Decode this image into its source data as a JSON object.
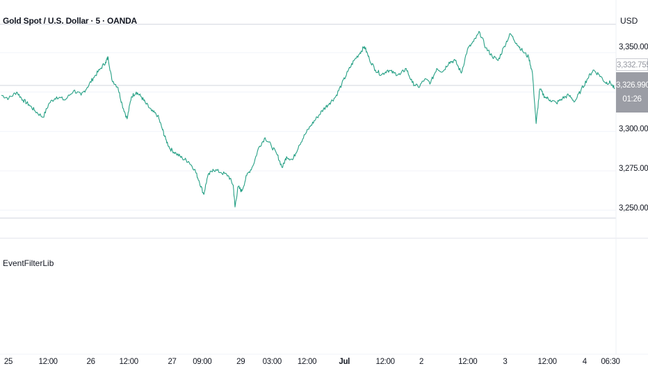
{
  "header": {
    "symbol_title": "Gold Spot / U.S. Dollar · 5 · OANDA",
    "currency": "USD"
  },
  "indicator_pane": {
    "label": "EventFilterLib"
  },
  "colors": {
    "line": "#26a085",
    "grid": "#f0f3fa",
    "separator": "#e0e3eb",
    "last_price_badge": "#9b9da5"
  },
  "price_axis": {
    "ticks": [
      "3,350.000",
      "3,300.000",
      "3,275.000",
      "3,250.000"
    ],
    "previous_close_label": "3,332.755",
    "last_price_label": "3,326.990",
    "countdown_label": "01:26"
  },
  "time_axis": {
    "ticks": [
      {
        "label": "25",
        "bold": false
      },
      {
        "label": "12:00",
        "bold": false
      },
      {
        "label": "26",
        "bold": false
      },
      {
        "label": "12:00",
        "bold": false
      },
      {
        "label": "27",
        "bold": false
      },
      {
        "label": "09:00",
        "bold": false
      },
      {
        "label": "29",
        "bold": false
      },
      {
        "label": "03:00",
        "bold": false
      },
      {
        "label": "12:00",
        "bold": false
      },
      {
        "label": "Jul",
        "bold": true
      },
      {
        "label": "12:00",
        "bold": false
      },
      {
        "label": "2",
        "bold": false
      },
      {
        "label": "12:00",
        "bold": false
      },
      {
        "label": "3",
        "bold": false
      },
      {
        "label": "12:00",
        "bold": false
      },
      {
        "label": "4",
        "bold": false
      },
      {
        "label": "06:30",
        "bold": false
      }
    ]
  },
  "chart_data": {
    "type": "line",
    "ylim": [
      3245,
      3368
    ],
    "x_label_positions": [
      0,
      0.066,
      0.137,
      0.2,
      0.272,
      0.322,
      0.386,
      0.438,
      0.496,
      0.558,
      0.626,
      0.686,
      0.763,
      0.825,
      0.895,
      0.957,
      1.0
    ],
    "points": [
      [
        0.0,
        3323
      ],
      [
        0.012,
        3321
      ],
      [
        0.025,
        3325
      ],
      [
        0.035,
        3320
      ],
      [
        0.045,
        3317
      ],
      [
        0.055,
        3313
      ],
      [
        0.068,
        3309
      ],
      [
        0.078,
        3318
      ],
      [
        0.09,
        3322
      ],
      [
        0.104,
        3320
      ],
      [
        0.118,
        3326
      ],
      [
        0.13,
        3323
      ],
      [
        0.14,
        3328
      ],
      [
        0.15,
        3334
      ],
      [
        0.16,
        3339
      ],
      [
        0.17,
        3344
      ],
      [
        0.174,
        3347
      ],
      [
        0.18,
        3333
      ],
      [
        0.19,
        3328
      ],
      [
        0.197,
        3317
      ],
      [
        0.205,
        3308
      ],
      [
        0.212,
        3322
      ],
      [
        0.22,
        3325
      ],
      [
        0.228,
        3322
      ],
      [
        0.235,
        3318
      ],
      [
        0.245,
        3313
      ],
      [
        0.255,
        3310
      ],
      [
        0.262,
        3302
      ],
      [
        0.268,
        3295
      ],
      [
        0.275,
        3289
      ],
      [
        0.285,
        3286
      ],
      [
        0.295,
        3283
      ],
      [
        0.305,
        3281
      ],
      [
        0.315,
        3276
      ],
      [
        0.322,
        3269
      ],
      [
        0.33,
        3260
      ],
      [
        0.336,
        3271
      ],
      [
        0.345,
        3276
      ],
      [
        0.358,
        3274
      ],
      [
        0.37,
        3272
      ],
      [
        0.378,
        3266
      ],
      [
        0.381,
        3252
      ],
      [
        0.386,
        3265
      ],
      [
        0.392,
        3262
      ],
      [
        0.4,
        3272
      ],
      [
        0.41,
        3278
      ],
      [
        0.42,
        3290
      ],
      [
        0.43,
        3296
      ],
      [
        0.44,
        3291
      ],
      [
        0.45,
        3285
      ],
      [
        0.458,
        3277
      ],
      [
        0.465,
        3284
      ],
      [
        0.475,
        3282
      ],
      [
        0.485,
        3291
      ],
      [
        0.495,
        3298
      ],
      [
        0.505,
        3304
      ],
      [
        0.515,
        3309
      ],
      [
        0.525,
        3314
      ],
      [
        0.535,
        3318
      ],
      [
        0.545,
        3322
      ],
      [
        0.555,
        3330
      ],
      [
        0.565,
        3338
      ],
      [
        0.575,
        3345
      ],
      [
        0.585,
        3350
      ],
      [
        0.592,
        3354
      ],
      [
        0.6,
        3346
      ],
      [
        0.61,
        3339
      ],
      [
        0.62,
        3336
      ],
      [
        0.63,
        3339
      ],
      [
        0.64,
        3337
      ],
      [
        0.65,
        3336
      ],
      [
        0.66,
        3340
      ],
      [
        0.67,
        3331
      ],
      [
        0.68,
        3328
      ],
      [
        0.69,
        3333
      ],
      [
        0.7,
        3331
      ],
      [
        0.71,
        3340
      ],
      [
        0.72,
        3338
      ],
      [
        0.73,
        3344
      ],
      [
        0.74,
        3345
      ],
      [
        0.75,
        3337
      ],
      [
        0.76,
        3352
      ],
      [
        0.77,
        3357
      ],
      [
        0.78,
        3363
      ],
      [
        0.79,
        3353
      ],
      [
        0.8,
        3348
      ],
      [
        0.81,
        3345
      ],
      [
        0.82,
        3354
      ],
      [
        0.83,
        3362
      ],
      [
        0.84,
        3356
      ],
      [
        0.85,
        3351
      ],
      [
        0.86,
        3347
      ],
      [
        0.866,
        3337
      ],
      [
        0.872,
        3305
      ],
      [
        0.878,
        3327
      ],
      [
        0.886,
        3322
      ],
      [
        0.895,
        3320
      ],
      [
        0.905,
        3318
      ],
      [
        0.915,
        3321
      ],
      [
        0.925,
        3323
      ],
      [
        0.935,
        3319
      ],
      [
        0.945,
        3326
      ],
      [
        0.955,
        3333
      ],
      [
        0.965,
        3339
      ],
      [
        0.975,
        3336
      ],
      [
        0.985,
        3331
      ],
      [
        0.993,
        3331
      ],
      [
        1.0,
        3327
      ]
    ]
  }
}
